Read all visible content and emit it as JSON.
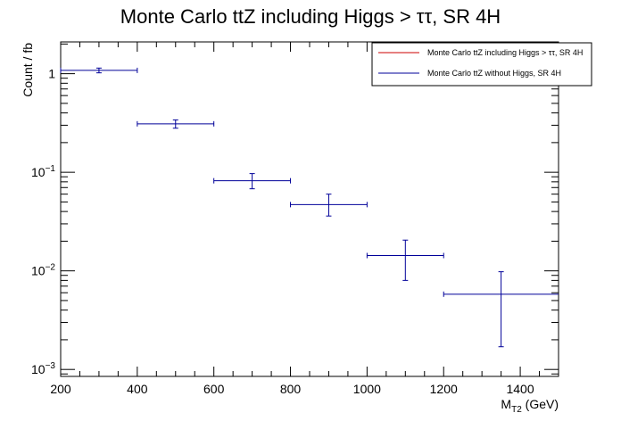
{
  "chart_data": {
    "type": "scatter",
    "title": "Monte Carlo ttZ including Higgs > ττ, SR 4H",
    "xlabel": "M",
    "xlabel_sub": "T2",
    "xlabel_unit": " (GeV)",
    "ylabel": "Count / fb",
    "xlim": [
      200,
      1500
    ],
    "ylim": [
      0.00085,
      2.1
    ],
    "yscale": "log",
    "grid": false,
    "legend_position": "top-right",
    "x_ticks": [
      "200",
      "400",
      "600",
      "800",
      "1000",
      "1200",
      "1400"
    ],
    "y_ticks": [
      {
        "value": 1,
        "base": "1",
        "exp": ""
      },
      {
        "value": 0.1,
        "base": "10",
        "exp": "−1"
      },
      {
        "value": 0.01,
        "base": "10",
        "exp": "−2"
      },
      {
        "value": 0.001,
        "base": "10",
        "exp": "−3"
      }
    ],
    "series": [
      {
        "name": "Monte Carlo ttZ including Higgs > ττ, SR 4H",
        "color": "#cc0000",
        "points": []
      },
      {
        "name": "Monte Carlo ttZ without Higgs, SR 4H",
        "color": "#000099",
        "points": [
          {
            "x": 300,
            "xlo": 200,
            "xhi": 400,
            "y": 1.08,
            "ylo": 1.02,
            "yhi": 1.14
          },
          {
            "x": 500,
            "xlo": 400,
            "xhi": 600,
            "y": 0.31,
            "ylo": 0.28,
            "yhi": 0.34
          },
          {
            "x": 700,
            "xlo": 600,
            "xhi": 800,
            "y": 0.082,
            "ylo": 0.068,
            "yhi": 0.097
          },
          {
            "x": 900,
            "xlo": 800,
            "xhi": 1000,
            "y": 0.047,
            "ylo": 0.036,
            "yhi": 0.06
          },
          {
            "x": 1100,
            "xlo": 1000,
            "xhi": 1200,
            "y": 0.0143,
            "ylo": 0.008,
            "yhi": 0.0205
          },
          {
            "x": 1350,
            "xlo": 1200,
            "xhi": 1500,
            "y": 0.0058,
            "ylo": 0.0017,
            "yhi": 0.0098
          }
        ]
      }
    ]
  }
}
